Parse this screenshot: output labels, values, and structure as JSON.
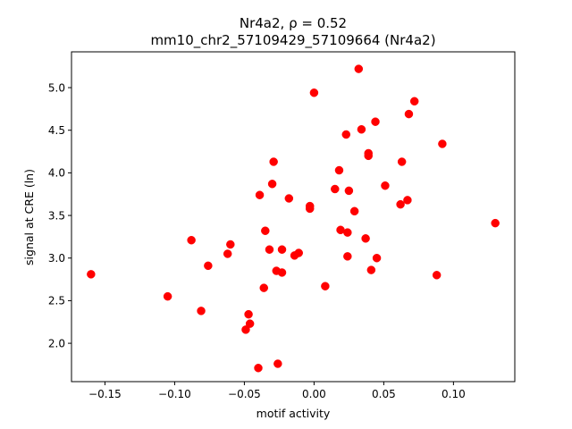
{
  "chart_data": {
    "type": "scatter",
    "title_line1": "Nr4a2, ρ = 0.52",
    "title_line2": "mm10_chr2_57109429_57109664 (Nr4a2)",
    "xlabel": "motif activity",
    "ylabel": "signal at CRE (ln)",
    "xlim": [
      -0.174,
      0.144
    ],
    "ylim": [
      1.55,
      5.42
    ],
    "xticks": [
      -0.15,
      -0.1,
      -0.05,
      0.0,
      0.05,
      0.1
    ],
    "xtick_labels": [
      "−0.15",
      "−0.10",
      "−0.05",
      "0.00",
      "0.05",
      "0.10"
    ],
    "yticks": [
      2.0,
      2.5,
      3.0,
      3.5,
      4.0,
      4.5,
      5.0
    ],
    "ytick_labels": [
      "2.0",
      "2.5",
      "3.0",
      "3.5",
      "4.0",
      "4.5",
      "5.0"
    ],
    "grid": false,
    "marker_color": "#ff0000",
    "points": [
      {
        "x": -0.16,
        "y": 2.81
      },
      {
        "x": -0.105,
        "y": 2.55
      },
      {
        "x": -0.088,
        "y": 3.21
      },
      {
        "x": -0.081,
        "y": 2.38
      },
      {
        "x": -0.076,
        "y": 2.91
      },
      {
        "x": -0.062,
        "y": 3.05
      },
      {
        "x": -0.06,
        "y": 3.16
      },
      {
        "x": -0.049,
        "y": 2.16
      },
      {
        "x": -0.047,
        "y": 2.34
      },
      {
        "x": -0.046,
        "y": 2.23
      },
      {
        "x": -0.04,
        "y": 1.71
      },
      {
        "x": -0.039,
        "y": 3.74
      },
      {
        "x": -0.036,
        "y": 2.65
      },
      {
        "x": -0.035,
        "y": 3.32
      },
      {
        "x": -0.032,
        "y": 3.1
      },
      {
        "x": -0.03,
        "y": 3.87
      },
      {
        "x": -0.029,
        "y": 4.13
      },
      {
        "x": -0.027,
        "y": 2.85
      },
      {
        "x": -0.026,
        "y": 1.76
      },
      {
        "x": -0.023,
        "y": 2.83
      },
      {
        "x": -0.023,
        "y": 3.1
      },
      {
        "x": -0.018,
        "y": 3.7
      },
      {
        "x": -0.014,
        "y": 3.03
      },
      {
        "x": -0.011,
        "y": 3.06
      },
      {
        "x": -0.003,
        "y": 3.61
      },
      {
        "x": -0.003,
        "y": 3.58
      },
      {
        "x": 0.0,
        "y": 4.94
      },
      {
        "x": 0.008,
        "y": 2.67
      },
      {
        "x": 0.015,
        "y": 3.81
      },
      {
        "x": 0.018,
        "y": 4.03
      },
      {
        "x": 0.019,
        "y": 3.33
      },
      {
        "x": 0.023,
        "y": 4.45
      },
      {
        "x": 0.024,
        "y": 3.3
      },
      {
        "x": 0.024,
        "y": 3.02
      },
      {
        "x": 0.025,
        "y": 3.79
      },
      {
        "x": 0.029,
        "y": 3.55
      },
      {
        "x": 0.032,
        "y": 5.22
      },
      {
        "x": 0.034,
        "y": 4.51
      },
      {
        "x": 0.037,
        "y": 3.23
      },
      {
        "x": 0.039,
        "y": 4.23
      },
      {
        "x": 0.039,
        "y": 4.2
      },
      {
        "x": 0.041,
        "y": 2.86
      },
      {
        "x": 0.044,
        "y": 4.6
      },
      {
        "x": 0.045,
        "y": 3.0
      },
      {
        "x": 0.051,
        "y": 3.85
      },
      {
        "x": 0.062,
        "y": 3.63
      },
      {
        "x": 0.063,
        "y": 4.13
      },
      {
        "x": 0.067,
        "y": 3.68
      },
      {
        "x": 0.068,
        "y": 4.69
      },
      {
        "x": 0.072,
        "y": 4.84
      },
      {
        "x": 0.088,
        "y": 2.8
      },
      {
        "x": 0.092,
        "y": 4.34
      },
      {
        "x": 0.13,
        "y": 3.41
      }
    ]
  }
}
